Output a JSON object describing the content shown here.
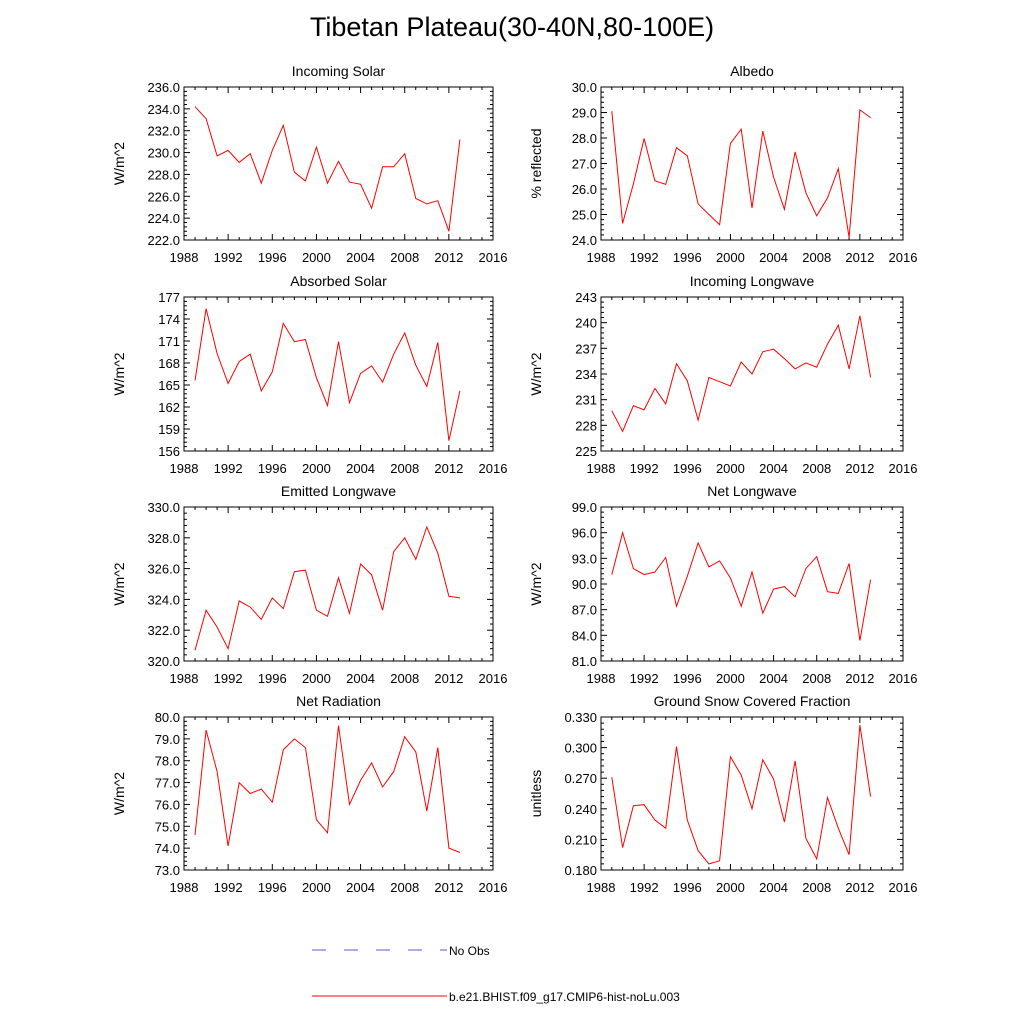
{
  "title": "Tibetan Plateau(30-40N,80-100E)",
  "colors": {
    "model_line": "#ff0000",
    "obs_line": "#5a5acd",
    "axis": "#000000"
  },
  "legend": {
    "obs_label": "No Obs",
    "model_label": "b.e21.BHIST.f09_g17.CMIP6-hist-noLu.003"
  },
  "chart_data": [
    {
      "type": "line",
      "title": "Incoming Solar",
      "xlabel": "",
      "ylabel": "W/m^2",
      "xlim": [
        1988,
        2016
      ],
      "ylim": [
        222,
        236
      ],
      "xticks": [
        "1988",
        "1992",
        "1996",
        "2000",
        "2004",
        "2008",
        "2012",
        "2016"
      ],
      "yticks": [
        "222.0",
        "224.0",
        "226.0",
        "228.0",
        "230.0",
        "232.0",
        "234.0",
        "236.0"
      ],
      "x": [
        1989,
        1990,
        1991,
        1992,
        1993,
        1994,
        1995,
        1996,
        1997,
        1998,
        1999,
        2000,
        2001,
        2002,
        2003,
        2004,
        2005,
        2006,
        2007,
        2008,
        2009,
        2010,
        2011,
        2012,
        2013
      ],
      "series": [
        {
          "name": "b.e21.BHIST.f09_g17.CMIP6-hist-noLu.003",
          "values": [
            234.2,
            233.1,
            229.7,
            230.2,
            229.1,
            229.9,
            227.2,
            230.2,
            232.5,
            228.2,
            227.4,
            230.5,
            227.2,
            229.2,
            227.3,
            227.1,
            224.9,
            228.7,
            228.7,
            229.9,
            225.8,
            225.3,
            225.6,
            222.8,
            231.2
          ]
        }
      ]
    },
    {
      "type": "line",
      "title": "Albedo",
      "xlabel": "",
      "ylabel": "% reflected",
      "xlim": [
        1988,
        2016
      ],
      "ylim": [
        24,
        30
      ],
      "xticks": [
        "1988",
        "1992",
        "1996",
        "2000",
        "2004",
        "2008",
        "2012",
        "2016"
      ],
      "yticks": [
        "24.0",
        "25.0",
        "26.0",
        "27.0",
        "28.0",
        "29.0",
        "30.0"
      ],
      "x": [
        1989,
        1990,
        1991,
        1992,
        1993,
        1994,
        1995,
        1996,
        1997,
        1998,
        1999,
        2000,
        2001,
        2002,
        2003,
        2004,
        2005,
        2006,
        2007,
        2008,
        2009,
        2010,
        2011,
        2012,
        2013
      ],
      "series": [
        {
          "name": "b.e21.BHIST.f09_g17.CMIP6-hist-noLu.003",
          "values": [
            29.05,
            24.65,
            26.2,
            27.98,
            26.32,
            26.18,
            27.62,
            27.3,
            25.42,
            25.0,
            24.6,
            27.78,
            28.35,
            25.25,
            28.27,
            26.46,
            25.2,
            27.45,
            25.85,
            24.95,
            25.65,
            26.8,
            24.1,
            29.1,
            28.8
          ]
        }
      ]
    },
    {
      "type": "line",
      "title": "Absorbed Solar",
      "xlabel": "",
      "ylabel": "W/m^2",
      "xlim": [
        1988,
        2016
      ],
      "ylim": [
        156,
        177
      ],
      "xticks": [
        "1988",
        "1992",
        "1996",
        "2000",
        "2004",
        "2008",
        "2012",
        "2016"
      ],
      "yticks": [
        "156",
        "159",
        "162",
        "165",
        "168",
        "171",
        "174",
        "177"
      ],
      "x": [
        1989,
        1990,
        1991,
        1992,
        1993,
        1994,
        1995,
        1996,
        1997,
        1998,
        1999,
        2000,
        2001,
        2002,
        2003,
        2004,
        2005,
        2006,
        2007,
        2008,
        2009,
        2010,
        2011,
        2012,
        2013
      ],
      "series": [
        {
          "name": "b.e21.BHIST.f09_g17.CMIP6-hist-noLu.003",
          "values": [
            165.6,
            175.4,
            169.3,
            165.2,
            168.2,
            169.2,
            164.2,
            166.8,
            173.4,
            170.9,
            171.2,
            166.0,
            162.2,
            170.9,
            162.6,
            166.6,
            167.6,
            165.4,
            169.2,
            172.1,
            167.7,
            164.8,
            170.8,
            157.4,
            164.2
          ]
        }
      ]
    },
    {
      "type": "line",
      "title": "Incoming Longwave",
      "xlabel": "",
      "ylabel": "W/m^2",
      "xlim": [
        1988,
        2016
      ],
      "ylim": [
        225,
        243
      ],
      "xticks": [
        "1988",
        "1992",
        "1996",
        "2000",
        "2004",
        "2008",
        "2012",
        "2016"
      ],
      "yticks": [
        "225",
        "228",
        "231",
        "234",
        "237",
        "240",
        "243"
      ],
      "x": [
        1989,
        1990,
        1991,
        1992,
        1993,
        1994,
        1995,
        1996,
        1997,
        1998,
        1999,
        2000,
        2001,
        2002,
        2003,
        2004,
        2005,
        2006,
        2007,
        2008,
        2009,
        2010,
        2011,
        2012,
        2013
      ],
      "series": [
        {
          "name": "b.e21.BHIST.f09_g17.CMIP6-hist-noLu.003",
          "values": [
            229.7,
            227.3,
            230.3,
            229.8,
            232.3,
            230.5,
            235.2,
            233.2,
            228.6,
            233.6,
            233.1,
            232.6,
            235.4,
            234.0,
            236.6,
            236.9,
            235.8,
            234.6,
            235.3,
            234.8,
            237.5,
            239.7,
            234.6,
            240.8,
            233.6
          ]
        }
      ]
    },
    {
      "type": "line",
      "title": "Emitted Longwave",
      "xlabel": "",
      "ylabel": "W/m^2",
      "xlim": [
        1988,
        2016
      ],
      "ylim": [
        320,
        330
      ],
      "xticks": [
        "1988",
        "1992",
        "1996",
        "2000",
        "2004",
        "2008",
        "2012",
        "2016"
      ],
      "yticks": [
        "320.0",
        "322.0",
        "324.0",
        "326.0",
        "328.0",
        "330.0"
      ],
      "x": [
        1989,
        1990,
        1991,
        1992,
        1993,
        1994,
        1995,
        1996,
        1997,
        1998,
        1999,
        2000,
        2001,
        2002,
        2003,
        2004,
        2005,
        2006,
        2007,
        2008,
        2009,
        2010,
        2011,
        2012,
        2013
      ],
      "series": [
        {
          "name": "b.e21.BHIST.f09_g17.CMIP6-hist-noLu.003",
          "values": [
            320.7,
            323.3,
            322.2,
            320.8,
            323.9,
            323.5,
            322.7,
            324.1,
            323.4,
            325.8,
            325.9,
            323.3,
            322.9,
            325.4,
            323.1,
            326.3,
            325.6,
            323.3,
            327.1,
            328.0,
            326.6,
            328.7,
            327.0,
            324.2,
            324.1
          ]
        }
      ]
    },
    {
      "type": "line",
      "title": "Net Longwave",
      "xlabel": "",
      "ylabel": "W/m^2",
      "xlim": [
        1988,
        2016
      ],
      "ylim": [
        81,
        99
      ],
      "xticks": [
        "1988",
        "1992",
        "1996",
        "2000",
        "2004",
        "2008",
        "2012",
        "2016"
      ],
      "yticks": [
        "81.0",
        "84.0",
        "87.0",
        "90.0",
        "93.0",
        "96.0",
        "99.0"
      ],
      "x": [
        1989,
        1990,
        1991,
        1992,
        1993,
        1994,
        1995,
        1996,
        1997,
        1998,
        1999,
        2000,
        2001,
        2002,
        2003,
        2004,
        2005,
        2006,
        2007,
        2008,
        2009,
        2010,
        2011,
        2012,
        2013
      ],
      "series": [
        {
          "name": "b.e21.BHIST.f09_g17.CMIP6-hist-noLu.003",
          "values": [
            91.1,
            96.0,
            91.8,
            91.1,
            91.4,
            93.1,
            87.4,
            90.9,
            94.8,
            92.0,
            92.7,
            90.7,
            87.4,
            91.4,
            86.6,
            89.4,
            89.7,
            88.5,
            91.8,
            93.2,
            89.1,
            88.9,
            92.4,
            83.4,
            90.5
          ]
        }
      ]
    },
    {
      "type": "line",
      "title": "Net Radiation",
      "xlabel": "",
      "ylabel": "W/m^2",
      "xlim": [
        1988,
        2016
      ],
      "ylim": [
        73,
        80
      ],
      "xticks": [
        "1988",
        "1992",
        "1996",
        "2000",
        "2004",
        "2008",
        "2012",
        "2016"
      ],
      "yticks": [
        "73.0",
        "74.0",
        "75.0",
        "76.0",
        "77.0",
        "78.0",
        "79.0",
        "80.0"
      ],
      "x": [
        1989,
        1990,
        1991,
        1992,
        1993,
        1994,
        1995,
        1996,
        1997,
        1998,
        1999,
        2000,
        2001,
        2002,
        2003,
        2004,
        2005,
        2006,
        2007,
        2008,
        2009,
        2010,
        2011,
        2012,
        2013
      ],
      "series": [
        {
          "name": "b.e21.BHIST.f09_g17.CMIP6-hist-noLu.003",
          "values": [
            74.6,
            79.4,
            77.5,
            74.1,
            77.0,
            76.5,
            76.7,
            76.1,
            78.5,
            79.0,
            78.6,
            75.3,
            74.7,
            79.6,
            76.0,
            77.1,
            77.9,
            76.8,
            77.5,
            79.1,
            78.4,
            75.7,
            78.6,
            74.0,
            73.8
          ]
        }
      ]
    },
    {
      "type": "line",
      "title": "Ground Snow Covered Fraction",
      "xlabel": "",
      "ylabel": "unitless",
      "xlim": [
        1988,
        2016
      ],
      "ylim": [
        0.18,
        0.33
      ],
      "xticks": [
        "1988",
        "1992",
        "1996",
        "2000",
        "2004",
        "2008",
        "2012",
        "2016"
      ],
      "yticks": [
        "0.180",
        "0.210",
        "0.240",
        "0.270",
        "0.300",
        "0.330"
      ],
      "x": [
        1989,
        1990,
        1991,
        1992,
        1993,
        1994,
        1995,
        1996,
        1997,
        1998,
        1999,
        2000,
        2001,
        2002,
        2003,
        2004,
        2005,
        2006,
        2007,
        2008,
        2009,
        2010,
        2011,
        2012,
        2013
      ],
      "series": [
        {
          "name": "b.e21.BHIST.f09_g17.CMIP6-hist-noLu.003",
          "values": [
            0.271,
            0.202,
            0.243,
            0.244,
            0.229,
            0.221,
            0.301,
            0.229,
            0.199,
            0.186,
            0.189,
            0.291,
            0.273,
            0.24,
            0.288,
            0.269,
            0.227,
            0.287,
            0.211,
            0.191,
            0.251,
            0.221,
            0.195,
            0.322,
            0.252
          ]
        }
      ]
    }
  ]
}
